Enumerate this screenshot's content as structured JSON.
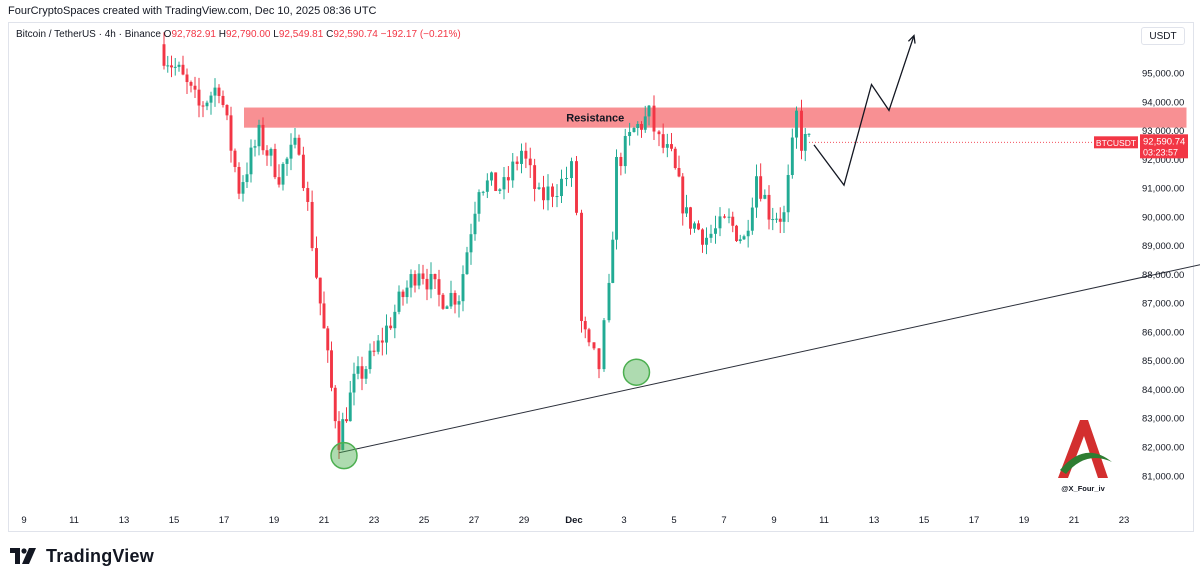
{
  "header": {
    "attribution": "FourCryptoSpaces created with TradingView.com, Dec 10, 2025 08:36 UTC"
  },
  "legend": {
    "symbol": "Bitcoin / TetherUS · 4h · Binance",
    "open_label": "O",
    "open": "92,782.91",
    "high_label": "H",
    "high": "92,790.00",
    "low_label": "L",
    "low": "92,549.81",
    "close_label": "C",
    "close": "92,590.74",
    "change": "−192.17 (−0.21%)"
  },
  "currency_button": {
    "label": "USDT"
  },
  "price_tag": {
    "symbol": "BTCUSDT",
    "price": "92,590.74",
    "countdown": "03:23:57",
    "value": 92590.74,
    "color": "#f23645"
  },
  "watermark": {
    "handle": "@X_Four_iv"
  },
  "footer": {
    "brand": "TradingView"
  },
  "colors": {
    "up": "#22ab94",
    "down": "#f23645",
    "zone": "#f77c80",
    "circle": "#4caf50"
  },
  "chart_data": {
    "type": "candlestick",
    "y_axis": {
      "range": [
        80500,
        96300
      ],
      "ticks": [
        81000,
        82000,
        83000,
        84000,
        85000,
        86000,
        87000,
        88000,
        89000,
        90000,
        91000,
        92000,
        93000,
        94000,
        95000
      ],
      "tick_labels": [
        "81,000.00",
        "82,000.00",
        "83,000.00",
        "84,000.00",
        "85,000.00",
        "86,000.00",
        "87,000.00",
        "88,000.00",
        "89,000.00",
        "90,000.00",
        "91,000.00",
        "92,000.00",
        "93,000.00",
        "94,000.00",
        "95,000.00"
      ]
    },
    "x_axis": {
      "range_days": [
        9,
        41.5
      ],
      "ticks": [
        {
          "day": 9,
          "label": "9"
        },
        {
          "day": 11,
          "label": "11"
        },
        {
          "day": 13,
          "label": "13"
        },
        {
          "day": 15,
          "label": "15"
        },
        {
          "day": 17,
          "label": "17"
        },
        {
          "day": 19,
          "label": "19"
        },
        {
          "day": 21,
          "label": "21"
        },
        {
          "day": 23,
          "label": "23"
        },
        {
          "day": 25,
          "label": "25"
        },
        {
          "day": 27,
          "label": "27"
        },
        {
          "day": 29,
          "label": "29"
        },
        {
          "day": 31,
          "label": "Dec",
          "bold": true
        },
        {
          "day": 33,
          "label": "3"
        },
        {
          "day": 35,
          "label": "5"
        },
        {
          "day": 37,
          "label": "7"
        },
        {
          "day": 39,
          "label": "9"
        },
        {
          "day": 41,
          "label": "11"
        },
        {
          "day": 43,
          "label": "13"
        },
        {
          "day": 45,
          "label": "15"
        },
        {
          "day": 47,
          "label": "17"
        },
        {
          "day": 49,
          "label": "19"
        },
        {
          "day": 51,
          "label": "21"
        },
        {
          "day": 53,
          "label": "23"
        }
      ]
    },
    "anchors": [
      {
        "day": 14.6,
        "price": 95700
      },
      {
        "day": 15.2,
        "price": 95000
      },
      {
        "day": 16.0,
        "price": 93800
      },
      {
        "day": 16.8,
        "price": 94600
      },
      {
        "day": 17.6,
        "price": 91000
      },
      {
        "day": 18.4,
        "price": 92800
      },
      {
        "day": 19.2,
        "price": 91500
      },
      {
        "day": 20.0,
        "price": 92600
      },
      {
        "day": 20.7,
        "price": 88000
      },
      {
        "day": 21.3,
        "price": 84000
      },
      {
        "day": 21.6,
        "price": 82300
      },
      {
        "day": 22.2,
        "price": 84200
      },
      {
        "day": 23.0,
        "price": 85200
      },
      {
        "day": 24.0,
        "price": 87000
      },
      {
        "day": 24.8,
        "price": 88300
      },
      {
        "day": 25.6,
        "price": 87200
      },
      {
        "day": 26.4,
        "price": 87300
      },
      {
        "day": 27.2,
        "price": 91200
      },
      {
        "day": 28.2,
        "price": 91000
      },
      {
        "day": 28.9,
        "price": 92300
      },
      {
        "day": 29.6,
        "price": 90600
      },
      {
        "day": 30.5,
        "price": 91200
      },
      {
        "day": 30.9,
        "price": 91600
      },
      {
        "day": 31.1,
        "price": 90200
      },
      {
        "day": 31.3,
        "price": 86300
      },
      {
        "day": 31.6,
        "price": 85300
      },
      {
        "day": 32.0,
        "price": 84800
      },
      {
        "day": 32.4,
        "price": 87300
      },
      {
        "day": 32.7,
        "price": 91800
      },
      {
        "day": 33.4,
        "price": 93000
      },
      {
        "day": 34.0,
        "price": 93500
      },
      {
        "day": 34.4,
        "price": 92600
      },
      {
        "day": 34.9,
        "price": 92000
      },
      {
        "day": 35.5,
        "price": 90000
      },
      {
        "day": 36.3,
        "price": 89300
      },
      {
        "day": 37.2,
        "price": 89800
      },
      {
        "day": 37.8,
        "price": 89200
      },
      {
        "day": 38.3,
        "price": 91500
      },
      {
        "day": 38.8,
        "price": 90200
      },
      {
        "day": 39.4,
        "price": 90000
      },
      {
        "day": 39.9,
        "price": 93500
      },
      {
        "day": 40.1,
        "price": 92600
      },
      {
        "day": 40.4,
        "price": 92590.74
      }
    ],
    "resistance_zone": {
      "label": "Resistance",
      "from_day": 17.8,
      "to_day": 55.5,
      "low": 93100,
      "high": 93800
    },
    "support_line": {
      "from": {
        "day": 21.6,
        "price": 81800
      },
      "to": {
        "day": 56.9,
        "price": 88500
      }
    },
    "projection_path": [
      {
        "day": 40.6,
        "price": 92500
      },
      {
        "day": 41.8,
        "price": 91100
      },
      {
        "day": 42.9,
        "price": 94600
      },
      {
        "day": 43.6,
        "price": 93700
      },
      {
        "day": 44.6,
        "price": 96300
      }
    ],
    "highlighted_lows": [
      {
        "day": 21.8,
        "price": 81700
      },
      {
        "day": 33.5,
        "price": 84600
      }
    ]
  }
}
